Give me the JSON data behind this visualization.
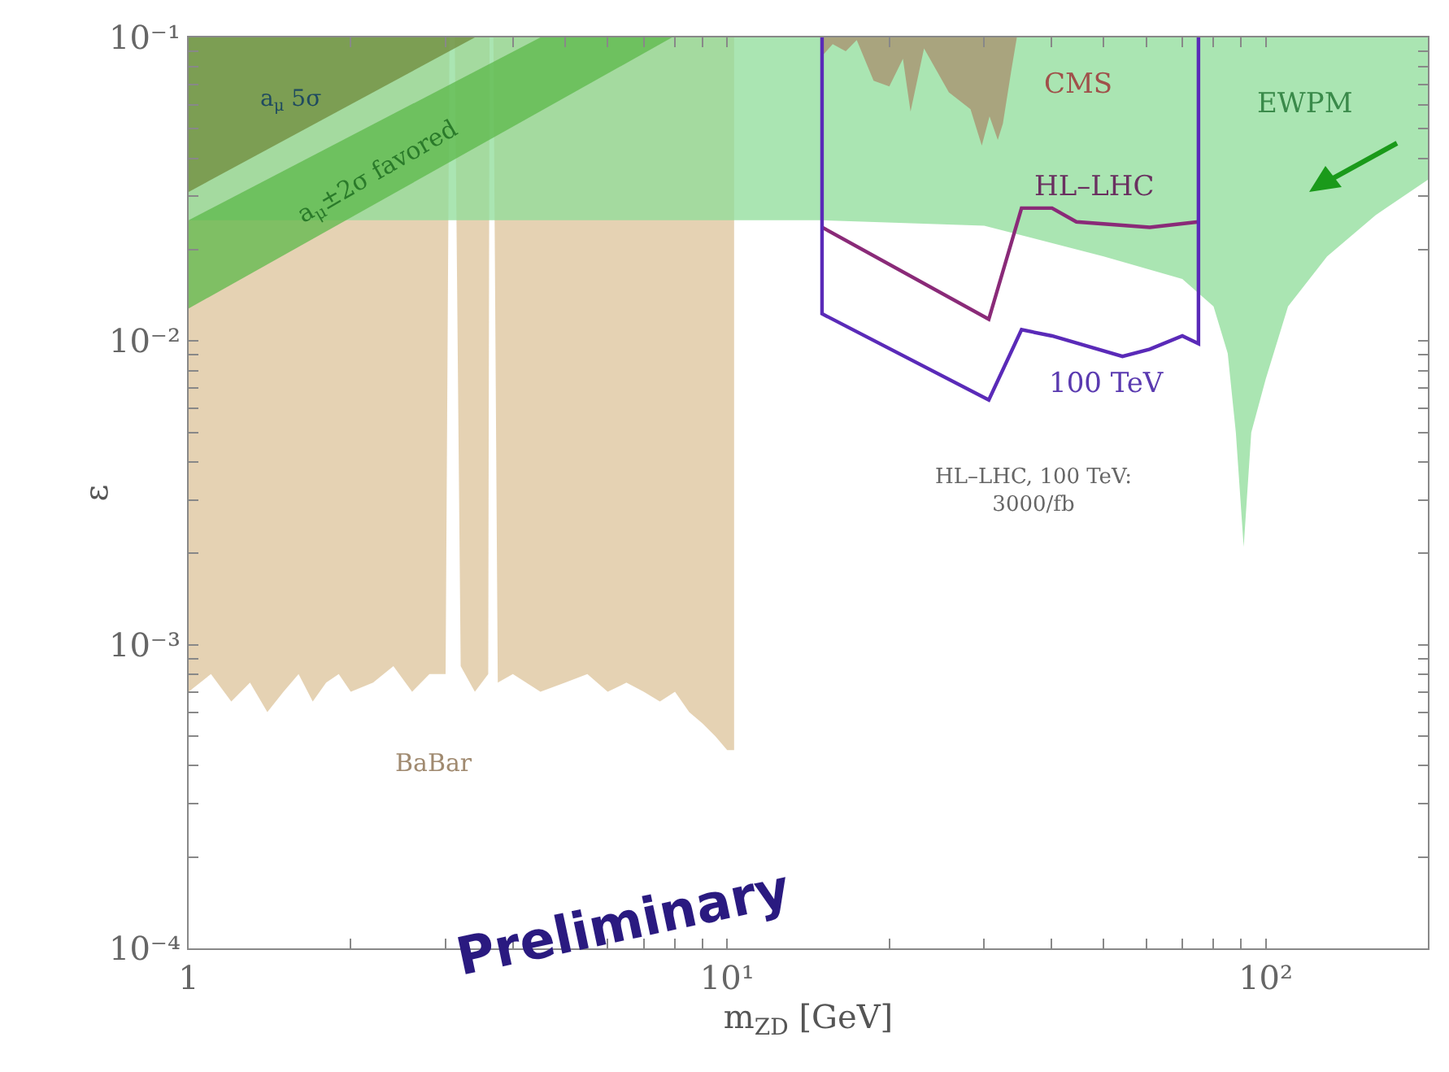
{
  "chart_data": {
    "type": "area",
    "xlabel": "m$_{ZD}$ [GeV]",
    "ylabel": "ε",
    "log": "xy",
    "grid": false,
    "xlim": [
      1,
      200
    ],
    "ylim": [
      0.0001,
      0.1
    ],
    "xticks": [
      {
        "value": 1,
        "label": "1"
      },
      {
        "value": 2,
        "label": null
      },
      {
        "value": 3,
        "label": null
      },
      {
        "value": 4,
        "label": null
      },
      {
        "value": 5,
        "label": null
      },
      {
        "value": 6,
        "label": null
      },
      {
        "value": 7,
        "label": null
      },
      {
        "value": 8,
        "label": null
      },
      {
        "value": 9,
        "label": null
      },
      {
        "value": 10,
        "label": "10¹"
      },
      {
        "value": 20,
        "label": null
      },
      {
        "value": 30,
        "label": null
      },
      {
        "value": 40,
        "label": null
      },
      {
        "value": 50,
        "label": null
      },
      {
        "value": 60,
        "label": null
      },
      {
        "value": 70,
        "label": null
      },
      {
        "value": 80,
        "label": null
      },
      {
        "value": 90,
        "label": null
      },
      {
        "value": 100,
        "label": "10²"
      },
      {
        "value": 200,
        "label": null
      }
    ],
    "yticks": [
      {
        "value": 0.0001,
        "label": "10⁻⁴"
      },
      {
        "value": 0.0002,
        "label": null
      },
      {
        "value": 0.0003,
        "label": null
      },
      {
        "value": 0.0004,
        "label": null
      },
      {
        "value": 0.0005,
        "label": null
      },
      {
        "value": 0.0006,
        "label": null
      },
      {
        "value": 0.0007,
        "label": null
      },
      {
        "value": 0.0008,
        "label": null
      },
      {
        "value": 0.0009,
        "label": null
      },
      {
        "value": 0.001,
        "label": "10⁻³"
      },
      {
        "value": 0.002,
        "label": null
      },
      {
        "value": 0.003,
        "label": null
      },
      {
        "value": 0.004,
        "label": null
      },
      {
        "value": 0.005,
        "label": null
      },
      {
        "value": 0.006,
        "label": null
      },
      {
        "value": 0.007,
        "label": null
      },
      {
        "value": 0.008,
        "label": null
      },
      {
        "value": 0.009,
        "label": null
      },
      {
        "value": 0.01,
        "label": "10⁻²"
      },
      {
        "value": 0.02,
        "label": null
      },
      {
        "value": 0.03,
        "label": null
      },
      {
        "value": 0.04,
        "label": null
      },
      {
        "value": 0.05,
        "label": null
      },
      {
        "value": 0.06,
        "label": null
      },
      {
        "value": 0.07,
        "label": null
      },
      {
        "value": 0.08,
        "label": null
      },
      {
        "value": 0.09,
        "label": null
      },
      {
        "value": 0.1,
        "label": "10⁻¹"
      }
    ],
    "series": [
      {
        "color": "#dcc39a",
        "x": [
          1,
          1,
          1.1,
          1.2,
          1.3,
          1.4,
          1.5,
          1.6,
          1.7,
          1.8,
          1.9,
          2.0,
          2.2,
          2.4,
          2.6,
          2.8,
          3.0,
          3.05,
          3.12,
          3.2,
          3.4,
          3.6,
          3.62,
          3.68,
          3.75,
          4.0,
          4.5,
          5,
          5.5,
          6,
          6.5,
          7,
          7.5,
          8,
          8.5,
          9,
          9.5,
          10,
          10.3,
          10.3
        ],
        "values": [
          0.1,
          0.0007,
          0.0008,
          0.00065,
          0.00075,
          0.0006,
          0.0007,
          0.0008,
          0.00065,
          0.00075,
          0.0008,
          0.0007,
          0.00075,
          0.00085,
          0.0007,
          0.0008,
          0.0008,
          0.1,
          0.1,
          0.00085,
          0.0007,
          0.0008,
          0.1,
          0.1,
          0.00075,
          0.0008,
          0.0007,
          0.00075,
          0.0008,
          0.0007,
          0.00075,
          0.0007,
          0.00065,
          0.0007,
          0.0006,
          0.00055,
          0.0005,
          0.00045,
          0.00045,
          0.1
        ]
      },
      {
        "color": "#8ddc98",
        "x": [
          1,
          1,
          15,
          30,
          50,
          70,
          80,
          85,
          88,
          91,
          94,
          100,
          110,
          130,
          160,
          200,
          200
        ],
        "values": [
          0.1,
          0.025,
          0.025,
          0.024,
          0.019,
          0.016,
          0.013,
          0.0091,
          0.005,
          0.0021,
          0.005,
          0.0075,
          0.013,
          0.019,
          0.026,
          0.034,
          0.1
        ]
      },
      {
        "color": "#5cb84a",
        "x": [
          1,
          7.9,
          4.5,
          1
        ],
        "values": [
          0.0128,
          0.1,
          0.1,
          0.025
        ]
      },
      {
        "color": "#6f8a3a",
        "x": [
          1,
          1,
          3.4
        ],
        "values": [
          0.1,
          0.031,
          0.1
        ]
      },
      {
        "color": "#a88d6c",
        "x": [
          15.0,
          15.1,
          15.7,
          16.6,
          17.4,
          18.7,
          20.0,
          21.2,
          21.9,
          23.2,
          25.8,
          28.3,
          29.7,
          30.7,
          31.8,
          32.5,
          33.7,
          34.5
        ],
        "values": [
          0.1,
          0.088,
          0.095,
          0.09,
          0.098,
          0.072,
          0.069,
          0.085,
          0.057,
          0.092,
          0.066,
          0.058,
          0.044,
          0.055,
          0.046,
          0.052,
          0.078,
          0.1
        ]
      },
      {
        "type": "line",
        "color": "#8a2a78",
        "x": [
          15,
          30.6,
          35.2,
          40.1,
          44.5,
          60.9,
          75
        ],
        "values": [
          0.0237,
          0.0118,
          0.0274,
          0.0274,
          0.0247,
          0.0237,
          0.0247
        ]
      },
      {
        "type": "line",
        "color": "#5a2ab8",
        "x": [
          15,
          15,
          30.6,
          35.2,
          40.1,
          54.2,
          60.9,
          70,
          75,
          75
        ],
        "values": [
          0.1,
          0.0123,
          0.0064,
          0.0109,
          0.0104,
          0.0089,
          0.0094,
          0.0104,
          0.0098,
          0.1
        ]
      }
    ],
    "annotations": [
      "CMS",
      "EWPM",
      "HL–LHC",
      "100 TeV",
      "HL–LHC, 100 TeV:\n3000/fb",
      "BaBar",
      "a$_{μ}$ 5σ",
      "a$_{μ}$±2σ favored",
      "Preliminary"
    ]
  }
}
